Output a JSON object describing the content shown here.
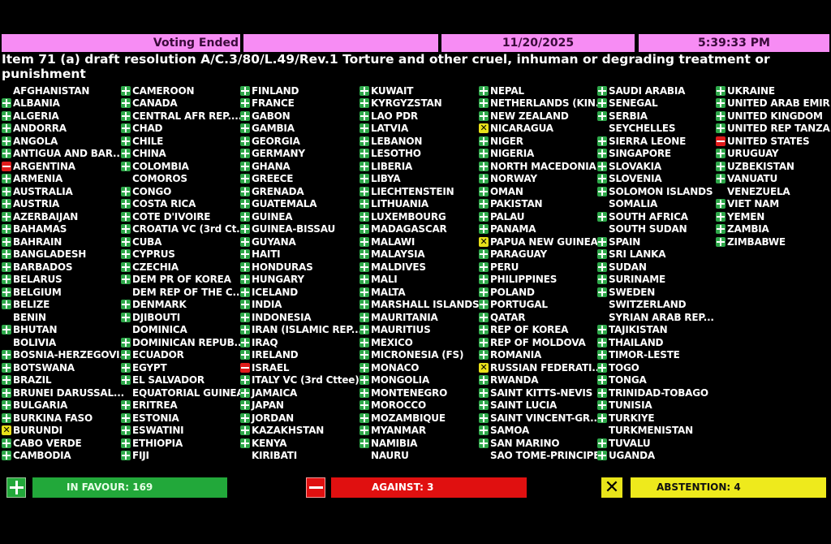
{
  "header": {
    "status": "Voting Ended",
    "blank": "",
    "date": "11/20/2025",
    "time": "5:39:33 PM"
  },
  "title": "Item 71 (a) draft resolution A/C.3/80/L.49/Rev.1 Torture and other cruel, inhuman or degrading treatment or punishment",
  "colors": {
    "header": "#f78cf4",
    "yes": "#2ea84a",
    "no": "#e01b1b",
    "abstain": "#e8e01a",
    "background": "#000000"
  },
  "vote_legend": {
    "Y": "in favour (plus-icon)",
    "N": "against (minus-icon)",
    "A": "abstention (x-icon)",
    "": "not voting"
  },
  "columns": [
    [
      [
        "AFGHANISTAN",
        ""
      ],
      [
        "ALBANIA",
        "Y"
      ],
      [
        "ALGERIA",
        "Y"
      ],
      [
        "ANDORRA",
        "Y"
      ],
      [
        "ANGOLA",
        "Y"
      ],
      [
        "ANTIGUA AND BAR...",
        "Y"
      ],
      [
        "ARGENTINA",
        "N"
      ],
      [
        "ARMENIA",
        "Y"
      ],
      [
        "AUSTRALIA",
        "Y"
      ],
      [
        "AUSTRIA",
        "Y"
      ],
      [
        "AZERBAIJAN",
        "Y"
      ],
      [
        "BAHAMAS",
        "Y"
      ],
      [
        "BAHRAIN",
        "Y"
      ],
      [
        "BANGLADESH",
        "Y"
      ],
      [
        "BARBADOS",
        "Y"
      ],
      [
        "BELARUS",
        "Y"
      ],
      [
        "BELGIUM",
        "Y"
      ],
      [
        "BELIZE",
        "Y"
      ],
      [
        "BENIN",
        ""
      ],
      [
        "BHUTAN",
        "Y"
      ],
      [
        "BOLIVIA",
        ""
      ],
      [
        "BOSNIA-HERZEGOVI...",
        "Y"
      ],
      [
        "BOTSWANA",
        "Y"
      ],
      [
        "BRAZIL",
        "Y"
      ],
      [
        "BRUNEI DARUSSAL...",
        "Y"
      ],
      [
        "BULGARIA",
        "Y"
      ],
      [
        "BURKINA FASO",
        "Y"
      ],
      [
        "BURUNDI",
        "A"
      ],
      [
        "CABO VERDE",
        "Y"
      ],
      [
        "CAMBODIA",
        "Y"
      ]
    ],
    [
      [
        "CAMEROON",
        "Y"
      ],
      [
        "CANADA",
        "Y"
      ],
      [
        "CENTRAL AFR REP....",
        "Y"
      ],
      [
        "CHAD",
        "Y"
      ],
      [
        "CHILE",
        "Y"
      ],
      [
        "CHINA",
        "Y"
      ],
      [
        "COLOMBIA",
        "Y"
      ],
      [
        "COMOROS",
        ""
      ],
      [
        "CONGO",
        "Y"
      ],
      [
        "COSTA RICA",
        "Y"
      ],
      [
        "COTE D'IVOIRE",
        "Y"
      ],
      [
        "CROATIA VC (3rd Ct...",
        "Y"
      ],
      [
        "CUBA",
        "Y"
      ],
      [
        "CYPRUS",
        "Y"
      ],
      [
        "CZECHIA",
        "Y"
      ],
      [
        "DEM PR OF KOREA",
        "Y"
      ],
      [
        "DEM REP OF THE C...",
        ""
      ],
      [
        "DENMARK",
        "Y"
      ],
      [
        "DJIBOUTI",
        "Y"
      ],
      [
        "DOMINICA",
        ""
      ],
      [
        "DOMINICAN REPUB...",
        "Y"
      ],
      [
        "ECUADOR",
        "Y"
      ],
      [
        "EGYPT",
        "Y"
      ],
      [
        "EL SALVADOR",
        "Y"
      ],
      [
        "EQUATORIAL GUINEA",
        ""
      ],
      [
        "ERITREA",
        "Y"
      ],
      [
        "ESTONIA",
        "Y"
      ],
      [
        "ESWATINI",
        "Y"
      ],
      [
        "ETHIOPIA",
        "Y"
      ],
      [
        "FIJI",
        "Y"
      ]
    ],
    [
      [
        "FINLAND",
        "Y"
      ],
      [
        "FRANCE",
        "Y"
      ],
      [
        "GABON",
        "Y"
      ],
      [
        "GAMBIA",
        "Y"
      ],
      [
        "GEORGIA",
        "Y"
      ],
      [
        "GERMANY",
        "Y"
      ],
      [
        "GHANA",
        "Y"
      ],
      [
        "GREECE",
        "Y"
      ],
      [
        "GRENADA",
        "Y"
      ],
      [
        "GUATEMALA",
        "Y"
      ],
      [
        "GUINEA",
        "Y"
      ],
      [
        "GUINEA-BISSAU",
        "Y"
      ],
      [
        "GUYANA",
        "Y"
      ],
      [
        "HAITI",
        "Y"
      ],
      [
        "HONDURAS",
        "Y"
      ],
      [
        "HUNGARY",
        "Y"
      ],
      [
        "ICELAND",
        "Y"
      ],
      [
        "INDIA",
        "Y"
      ],
      [
        "INDONESIA",
        "Y"
      ],
      [
        "IRAN (ISLAMIC REP...",
        "Y"
      ],
      [
        "IRAQ",
        "Y"
      ],
      [
        "IRELAND",
        "Y"
      ],
      [
        "ISRAEL",
        "N"
      ],
      [
        "ITALY VC (3rd Cttee)",
        "Y"
      ],
      [
        "JAMAICA",
        "Y"
      ],
      [
        "JAPAN",
        "Y"
      ],
      [
        "JORDAN",
        "Y"
      ],
      [
        "KAZAKHSTAN",
        "Y"
      ],
      [
        "KENYA",
        "Y"
      ],
      [
        "KIRIBATI",
        ""
      ]
    ],
    [
      [
        "KUWAIT",
        "Y"
      ],
      [
        "KYRGYZSTAN",
        "Y"
      ],
      [
        "LAO PDR",
        "Y"
      ],
      [
        "LATVIA",
        "Y"
      ],
      [
        "LEBANON",
        "Y"
      ],
      [
        "LESOTHO",
        "Y"
      ],
      [
        "LIBERIA",
        "Y"
      ],
      [
        "LIBYA",
        "Y"
      ],
      [
        "LIECHTENSTEIN",
        "Y"
      ],
      [
        "LITHUANIA",
        "Y"
      ],
      [
        "LUXEMBOURG",
        "Y"
      ],
      [
        "MADAGASCAR",
        "Y"
      ],
      [
        "MALAWI",
        "Y"
      ],
      [
        "MALAYSIA",
        "Y"
      ],
      [
        "MALDIVES",
        "Y"
      ],
      [
        "MALI",
        "Y"
      ],
      [
        "MALTA",
        "Y"
      ],
      [
        "MARSHALL ISLANDS",
        "Y"
      ],
      [
        "MAURITANIA",
        "Y"
      ],
      [
        "MAURITIUS",
        "Y"
      ],
      [
        "MEXICO",
        "Y"
      ],
      [
        "MICRONESIA (FS)",
        "Y"
      ],
      [
        "MONACO",
        "Y"
      ],
      [
        "MONGOLIA",
        "Y"
      ],
      [
        "MONTENEGRO",
        "Y"
      ],
      [
        "MOROCCO",
        "Y"
      ],
      [
        "MOZAMBIQUE",
        "Y"
      ],
      [
        "MYANMAR",
        "Y"
      ],
      [
        "NAMIBIA",
        "Y"
      ],
      [
        "NAURU",
        ""
      ]
    ],
    [
      [
        "NEPAL",
        "Y"
      ],
      [
        "NETHERLANDS (KIN...",
        "Y"
      ],
      [
        "NEW ZEALAND",
        "Y"
      ],
      [
        "NICARAGUA",
        "A"
      ],
      [
        "NIGER",
        "Y"
      ],
      [
        "NIGERIA",
        "Y"
      ],
      [
        "NORTH MACEDONIA",
        "Y"
      ],
      [
        "NORWAY",
        "Y"
      ],
      [
        "OMAN",
        "Y"
      ],
      [
        "PAKISTAN",
        "Y"
      ],
      [
        "PALAU",
        "Y"
      ],
      [
        "PANAMA",
        "Y"
      ],
      [
        "PAPUA NEW GUINEA",
        "A"
      ],
      [
        "PARAGUAY",
        "Y"
      ],
      [
        "PERU",
        "Y"
      ],
      [
        "PHILIPPINES",
        "Y"
      ],
      [
        "POLAND",
        "Y"
      ],
      [
        "PORTUGAL",
        "Y"
      ],
      [
        "QATAR",
        "Y"
      ],
      [
        "REP OF KOREA",
        "Y"
      ],
      [
        "REP OF MOLDOVA",
        "Y"
      ],
      [
        "ROMANIA",
        "Y"
      ],
      [
        "RUSSIAN FEDERATI...",
        "A"
      ],
      [
        "RWANDA",
        "Y"
      ],
      [
        "SAINT KITTS-NEVIS",
        "Y"
      ],
      [
        "SAINT LUCIA",
        "Y"
      ],
      [
        "SAINT VINCENT-GR...",
        "Y"
      ],
      [
        "SAMOA",
        "Y"
      ],
      [
        "SAN MARINO",
        "Y"
      ],
      [
        "SAO TOME-PRINCIPE",
        ""
      ]
    ],
    [
      [
        "SAUDI ARABIA",
        "Y"
      ],
      [
        "SENEGAL",
        "Y"
      ],
      [
        "SERBIA",
        "Y"
      ],
      [
        "SEYCHELLES",
        ""
      ],
      [
        "SIERRA LEONE",
        "Y"
      ],
      [
        "SINGAPORE",
        "Y"
      ],
      [
        "SLOVAKIA",
        "Y"
      ],
      [
        "SLOVENIA",
        "Y"
      ],
      [
        "SOLOMON ISLANDS",
        "Y"
      ],
      [
        "SOMALIA",
        ""
      ],
      [
        "SOUTH AFRICA",
        "Y"
      ],
      [
        "SOUTH SUDAN",
        ""
      ],
      [
        "SPAIN",
        "Y"
      ],
      [
        "SRI LANKA",
        "Y"
      ],
      [
        "SUDAN",
        "Y"
      ],
      [
        "SURINAME",
        "Y"
      ],
      [
        "SWEDEN",
        "Y"
      ],
      [
        "SWITZERLAND",
        ""
      ],
      [
        "SYRIAN ARAB REP...",
        ""
      ],
      [
        "TAJIKISTAN",
        "Y"
      ],
      [
        "THAILAND",
        "Y"
      ],
      [
        "TIMOR-LESTE",
        "Y"
      ],
      [
        "TOGO",
        "Y"
      ],
      [
        "TONGA",
        "Y"
      ],
      [
        "TRINIDAD-TOBAGO",
        "Y"
      ],
      [
        "TUNISIA",
        "Y"
      ],
      [
        "TURKIYE",
        "Y"
      ],
      [
        "TURKMENISTAN",
        ""
      ],
      [
        "TUVALU",
        "Y"
      ],
      [
        "UGANDA",
        "Y"
      ]
    ],
    [
      [
        "UKRAINE",
        "Y"
      ],
      [
        "UNITED ARAB EMIR...",
        "Y"
      ],
      [
        "UNITED KINGDOM",
        "Y"
      ],
      [
        "UNITED REP TANZA...",
        "Y"
      ],
      [
        "UNITED STATES",
        "N"
      ],
      [
        "URUGUAY",
        "Y"
      ],
      [
        "UZBEKISTAN",
        "Y"
      ],
      [
        "VANUATU",
        "Y"
      ],
      [
        "VENEZUELA",
        ""
      ],
      [
        "VIET NAM",
        "Y"
      ],
      [
        "YEMEN",
        "Y"
      ],
      [
        "ZAMBIA",
        "Y"
      ],
      [
        "ZIMBABWE",
        "Y"
      ]
    ]
  ],
  "totals": {
    "in_favour": "IN FAVOUR: 169",
    "against": "AGAINST: 3",
    "abstention": "ABSTENTION: 4"
  }
}
